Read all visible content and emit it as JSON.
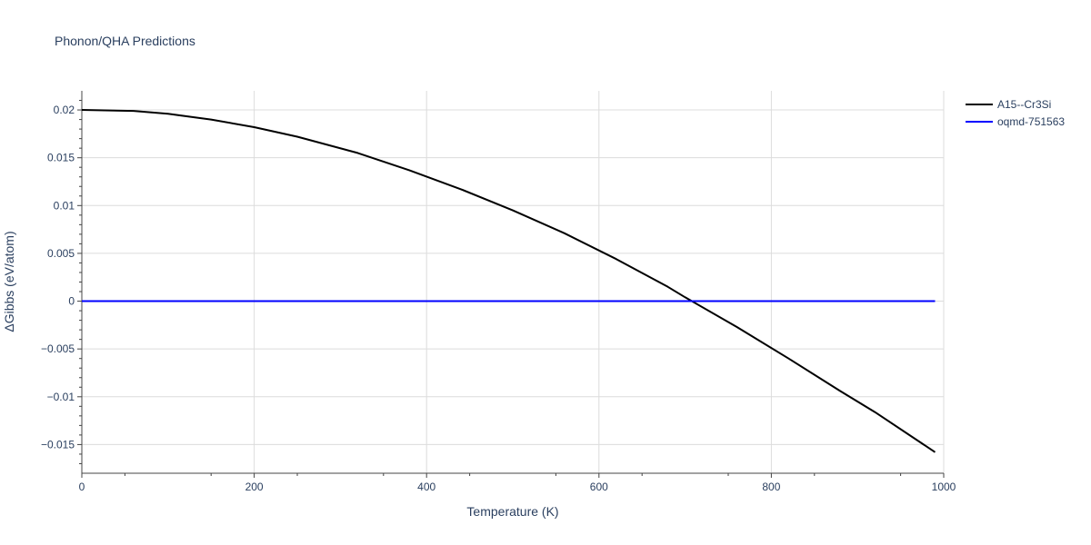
{
  "chart_data": {
    "type": "line",
    "title": "Phonon/QHA Predictions",
    "xlabel": "Temperature (K)",
    "ylabel": "ΔGibbs (eV/atom)",
    "xlim": [
      0,
      1000
    ],
    "ylim": [
      -0.018,
      0.022
    ],
    "xticks": [
      0,
      200,
      400,
      600,
      800,
      1000
    ],
    "xtick_labels": [
      "0",
      "200",
      "400",
      "600",
      "800",
      "1000"
    ],
    "yticks": [
      -0.015,
      -0.01,
      -0.005,
      0,
      0.005,
      0.01,
      0.015,
      0.02
    ],
    "ytick_labels": [
      "−0.015",
      "−0.01",
      "−0.005",
      "0",
      "0.005",
      "0.01",
      "0.015",
      "0.02"
    ],
    "grid": true,
    "legend_position": "top-right",
    "series": [
      {
        "name": "A15--Cr3Si",
        "color": "#000000",
        "x": [
          0,
          60,
          100,
          150,
          200,
          250,
          320,
          380,
          440,
          500,
          560,
          620,
          680,
          700,
          760,
          820,
          880,
          920,
          990
        ],
        "y": [
          0.02,
          0.0199,
          0.0196,
          0.019,
          0.0182,
          0.0172,
          0.0155,
          0.0137,
          0.0117,
          0.0095,
          0.0071,
          0.0044,
          0.0015,
          0.0004,
          -0.0027,
          -0.006,
          -0.0094,
          -0.0116,
          -0.0158
        ]
      },
      {
        "name": "oqmd-751563",
        "color": "#0000ff",
        "x": [
          0,
          990
        ],
        "y": [
          0,
          0
        ]
      }
    ]
  }
}
